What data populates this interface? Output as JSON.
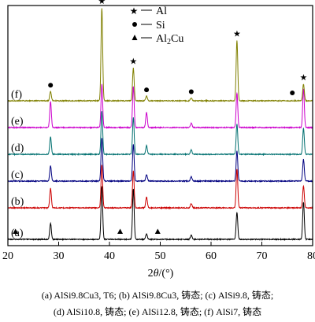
{
  "chart_data": {
    "type": "line",
    "xlabel_prefix": "2",
    "xlabel_symbol": "θ",
    "xlabel_suffix": "/(°)",
    "ylabel": "",
    "xlim": [
      20,
      80
    ],
    "xticks": [
      20,
      30,
      40,
      50,
      60,
      70,
      80
    ],
    "grid": false,
    "legend": {
      "placement": "top-center",
      "entries": [
        {
          "marker": "star",
          "label": "Al"
        },
        {
          "marker": "circle",
          "label": "Si"
        },
        {
          "marker": "triangle",
          "label_main": "Al",
          "label_sub": "2",
          "label_tail": "Cu"
        }
      ]
    },
    "series": [
      {
        "name": "(a)",
        "color": "#000000",
        "peaks": [
          [
            28.4,
            0.3
          ],
          [
            38.5,
            1.0
          ],
          [
            44.7,
            0.95
          ],
          [
            47.3,
            0.1
          ],
          [
            56.1,
            0.08
          ],
          [
            65.1,
            0.5
          ],
          [
            78.2,
            0.7
          ]
        ]
      },
      {
        "name": "(b)",
        "color": "#cc0000",
        "peaks": [
          [
            28.4,
            0.45
          ],
          [
            38.5,
            1.0
          ],
          [
            44.7,
            0.85
          ],
          [
            47.3,
            0.25
          ],
          [
            56.1,
            0.1
          ],
          [
            65.1,
            0.9
          ],
          [
            78.2,
            0.5
          ]
        ]
      },
      {
        "name": "(c)",
        "color": "#000080",
        "peaks": [
          [
            28.4,
            0.35
          ],
          [
            38.5,
            1.0
          ],
          [
            44.7,
            0.85
          ],
          [
            47.3,
            0.15
          ],
          [
            56.1,
            0.1
          ],
          [
            65.1,
            0.7
          ],
          [
            78.2,
            0.5
          ]
        ]
      },
      {
        "name": "(d)",
        "color": "#007070",
        "peaks": [
          [
            28.4,
            0.4
          ],
          [
            38.5,
            1.0
          ],
          [
            44.7,
            0.85
          ],
          [
            47.3,
            0.2
          ],
          [
            56.1,
            0.1
          ],
          [
            65.1,
            0.7
          ],
          [
            78.2,
            0.6
          ]
        ]
      },
      {
        "name": "(e)",
        "color": "#cc00cc",
        "peaks": [
          [
            28.4,
            0.6
          ],
          [
            38.5,
            1.0
          ],
          [
            44.7,
            0.95
          ],
          [
            47.3,
            0.35
          ],
          [
            56.1,
            0.1
          ],
          [
            65.1,
            0.8
          ],
          [
            78.2,
            0.9
          ]
        ]
      },
      {
        "name": "(f)",
        "color": "#808000",
        "peaks": [
          [
            28.4,
            0.1
          ],
          [
            38.5,
            1.0
          ],
          [
            44.7,
            0.35
          ],
          [
            47.3,
            0.05
          ],
          [
            56.1,
            0.03
          ],
          [
            65.1,
            0.65
          ],
          [
            78.2,
            0.18
          ]
        ]
      }
    ],
    "annotations": [
      {
        "marker": "star",
        "series": "(f)",
        "x": 38.5
      },
      {
        "marker": "star",
        "series": "(f)",
        "x": 44.7
      },
      {
        "marker": "star",
        "series": "(f)",
        "x": 65.1
      },
      {
        "marker": "star",
        "series": "(f)",
        "x": 78.2
      },
      {
        "marker": "circle",
        "series": "(f)",
        "x": 28.4
      },
      {
        "marker": "circle",
        "series": "(f)",
        "x": 47.3
      },
      {
        "marker": "circle",
        "series": "(f)",
        "x": 56.1
      },
      {
        "marker": "circle",
        "series": "(f)",
        "x": 76.0
      },
      {
        "marker": "triangle",
        "series": "(a)",
        "x": 21.5
      },
      {
        "marker": "triangle",
        "series": "(a)",
        "x": 42.1
      },
      {
        "marker": "triangle",
        "series": "(a)",
        "x": 49.5
      }
    ]
  },
  "caption": {
    "line1": "(a) AlSi9.8Cu3, T6; (b) AlSi9.8Cu3,  铸态; (c) AlSi9.8,  铸态;",
    "line2": "(d) AlSi10.8,  铸态; (e) AlSi12.8,  铸态; (f) AlSi7,  铸态"
  }
}
